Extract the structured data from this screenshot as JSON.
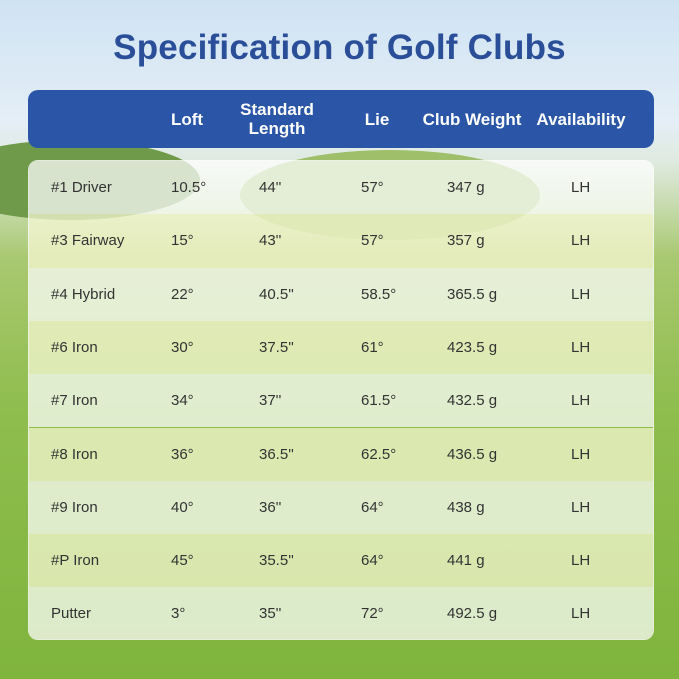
{
  "header": {
    "title": "Specification of Golf Clubs"
  },
  "table": {
    "columns": [
      "Loft",
      "Standard Length",
      "Lie",
      "Club Weight",
      "Availability"
    ],
    "rows": [
      [
        "#1 Driver",
        "10.5°",
        "44''",
        "57°",
        "347 g",
        "LH"
      ],
      [
        "#3 Fairway",
        "15°",
        "43''",
        "57°",
        "357 g",
        "LH"
      ],
      [
        "#4 Hybrid",
        "22°",
        "40.5''",
        "58.5°",
        "365.5 g",
        "LH"
      ],
      [
        "#6 Iron",
        "30°",
        "37.5''",
        "61°",
        "423.5 g",
        "LH"
      ],
      [
        "#7 Iron",
        "34°",
        "37''",
        "61.5°",
        "432.5 g",
        "LH"
      ],
      [
        "#8 Iron",
        "36°",
        "36.5''",
        "62.5°",
        "436.5 g",
        "LH"
      ],
      [
        "#9 Iron",
        "40°",
        "36''",
        "64°",
        "438 g",
        "LH"
      ],
      [
        "#P Iron",
        "45°",
        "35.5''",
        "64°",
        "441 g",
        "LH"
      ],
      [
        "Putter",
        "3°",
        "35''",
        "72°",
        "492.5 g",
        "LH"
      ]
    ]
  }
}
